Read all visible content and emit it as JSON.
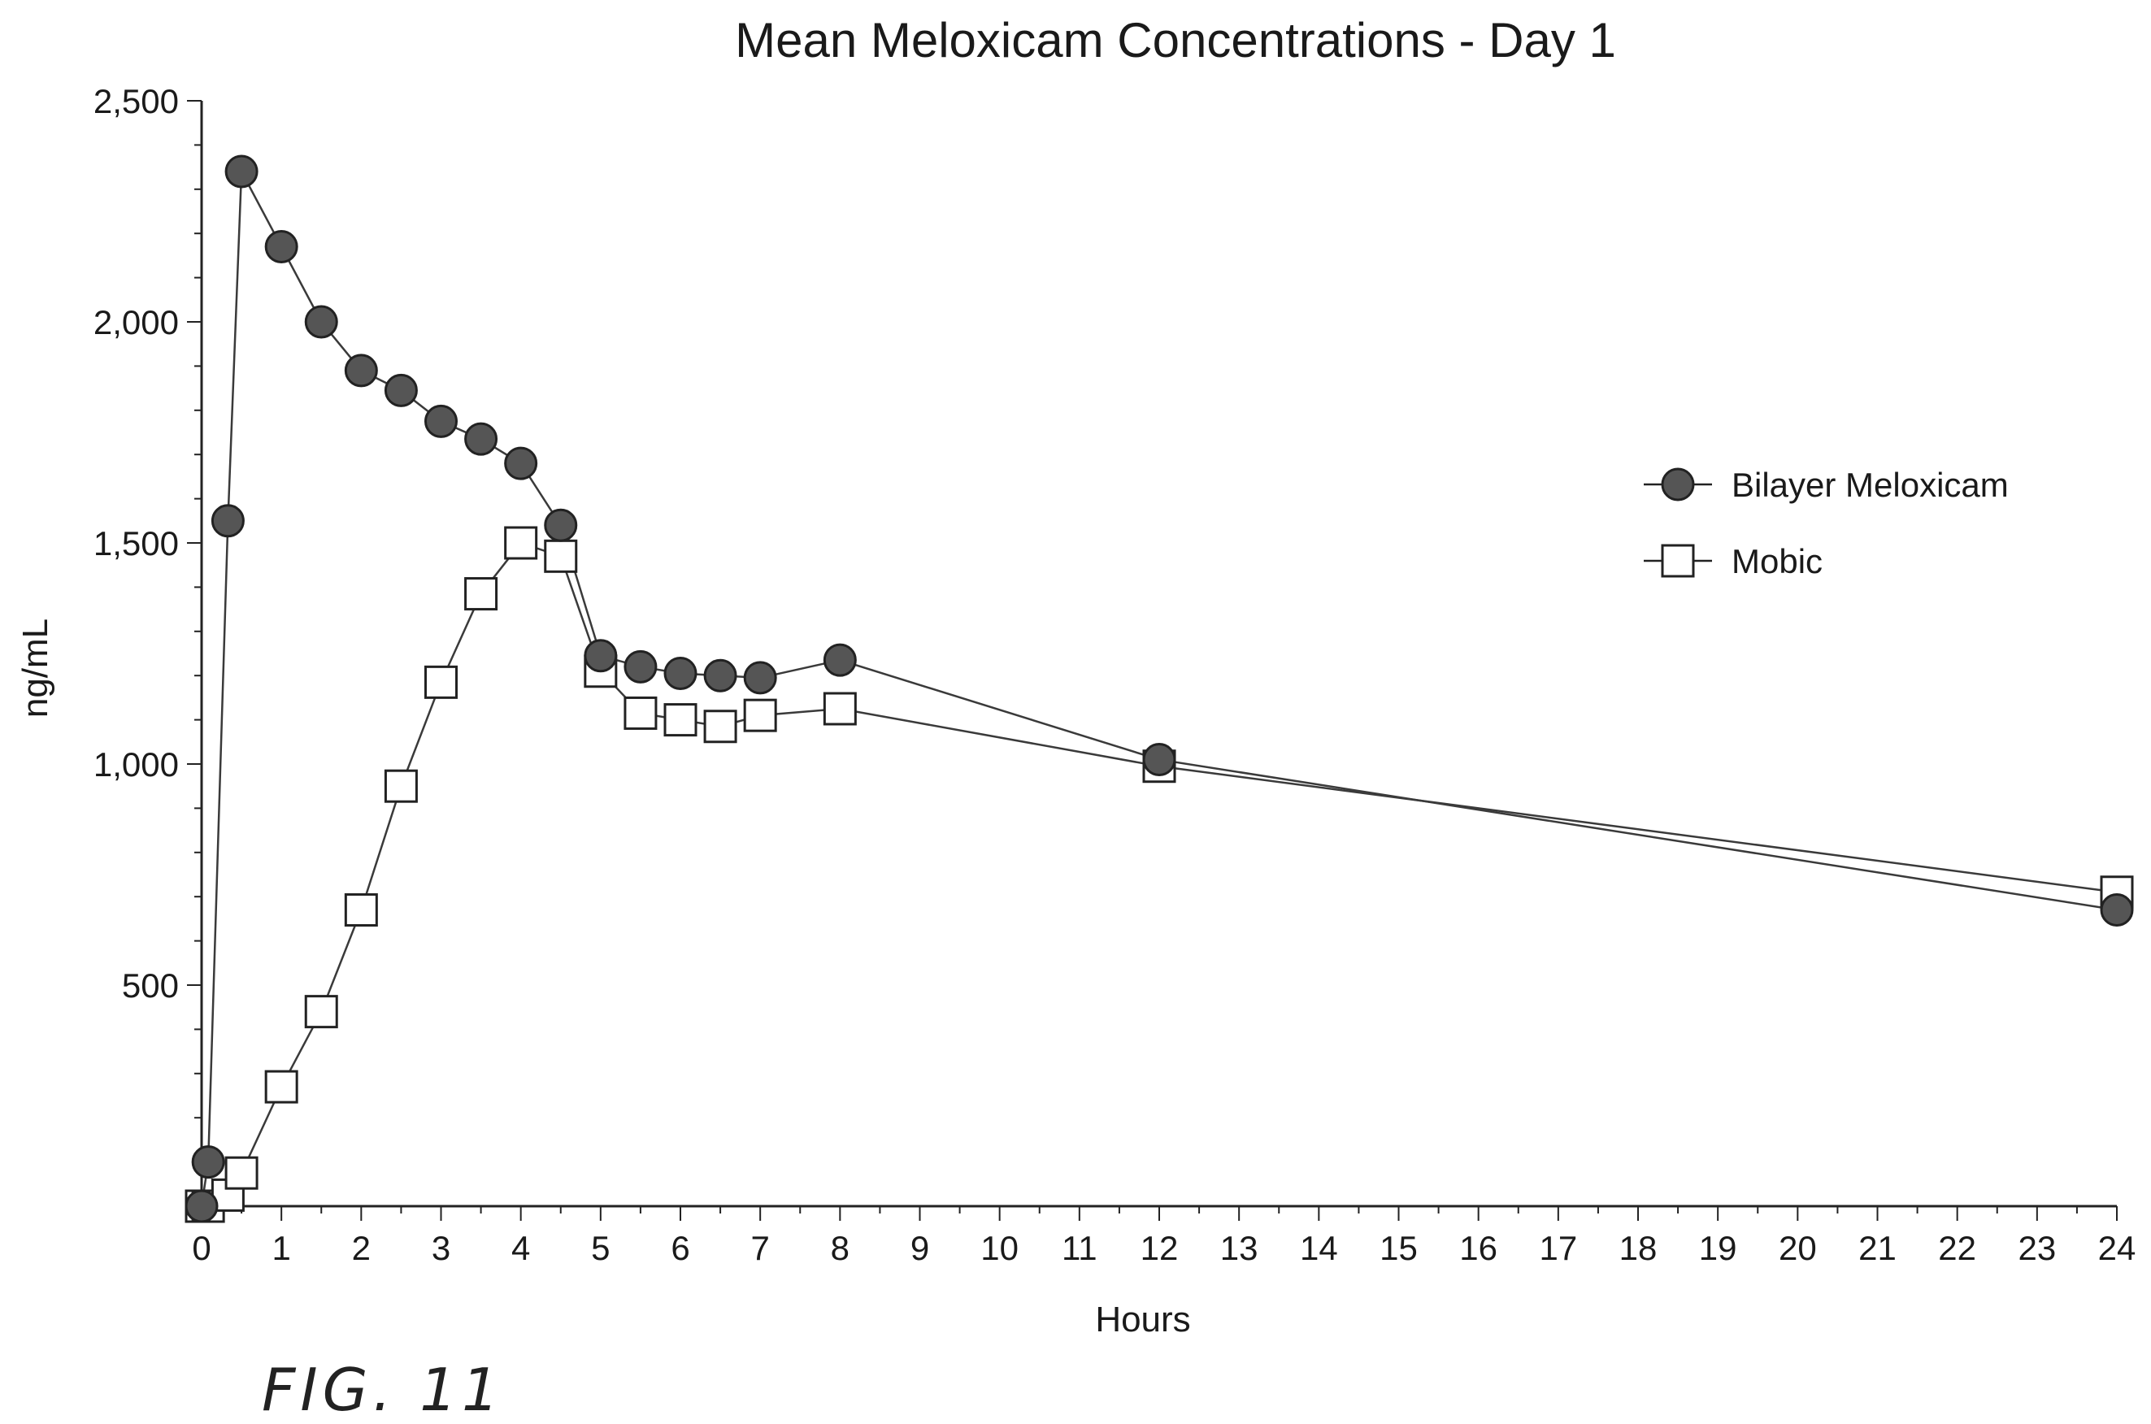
{
  "chart_data": {
    "type": "line",
    "title": "Mean Meloxicam Concentrations - Day 1",
    "xlabel": "Hours",
    "ylabel": "ng/mL",
    "xlim": [
      0,
      24
    ],
    "ylim": [
      0,
      2500
    ],
    "x_ticks": [
      "0",
      "1",
      "2",
      "3",
      "4",
      "5",
      "6",
      "7",
      "8",
      "9",
      "10",
      "11",
      "12",
      "13",
      "14",
      "15",
      "16",
      "17",
      "18",
      "19",
      "20",
      "21",
      "22",
      "23",
      "24"
    ],
    "y_ticks": [
      {
        "value": 500,
        "label": "500"
      },
      {
        "value": 1000,
        "label": "1,000"
      },
      {
        "value": 1500,
        "label": "1,500"
      },
      {
        "value": 2000,
        "label": "2,000"
      },
      {
        "value": 2500,
        "label": "2,500"
      }
    ],
    "grid": false,
    "legend_position": "right",
    "series": [
      {
        "name": "Bilayer Meloxicam",
        "marker": "filled-circle",
        "color": "#3a3a3a",
        "points": [
          [
            0,
            0
          ],
          [
            0.083,
            100
          ],
          [
            0.33,
            1550
          ],
          [
            0.5,
            2340
          ],
          [
            1,
            2170
          ],
          [
            1.5,
            2000
          ],
          [
            2,
            1890
          ],
          [
            2.5,
            1845
          ],
          [
            3,
            1775
          ],
          [
            3.5,
            1735
          ],
          [
            4,
            1680
          ],
          [
            4.5,
            1540
          ],
          [
            5,
            1245
          ],
          [
            5.5,
            1220
          ],
          [
            6,
            1205
          ],
          [
            6.5,
            1200
          ],
          [
            7,
            1195
          ],
          [
            8,
            1235
          ],
          [
            12,
            1010
          ],
          [
            24,
            670
          ]
        ]
      },
      {
        "name": "Mobic",
        "marker": "open-square",
        "color": "#3a3a3a",
        "points": [
          [
            0,
            0
          ],
          [
            0.083,
            0
          ],
          [
            0.33,
            25
          ],
          [
            0.5,
            75
          ],
          [
            1,
            270
          ],
          [
            1.5,
            440
          ],
          [
            2,
            670
          ],
          [
            2.5,
            950
          ],
          [
            3,
            1185
          ],
          [
            3.5,
            1385
          ],
          [
            4,
            1500
          ],
          [
            4.5,
            1470
          ],
          [
            5,
            1210
          ],
          [
            5.5,
            1115
          ],
          [
            6,
            1100
          ],
          [
            6.5,
            1085
          ],
          [
            7,
            1110
          ],
          [
            8,
            1125
          ],
          [
            12,
            995
          ],
          [
            24,
            710
          ]
        ]
      }
    ]
  },
  "figure_label": "FIG. 11"
}
